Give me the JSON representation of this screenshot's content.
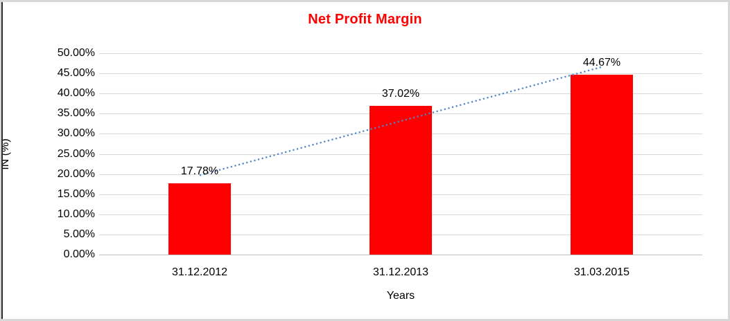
{
  "frame": {
    "background": "#ffffff",
    "border_color": "#d8d8d8",
    "left_accent_color": "#2b2b2b"
  },
  "chart_data": {
    "type": "bar",
    "title": "Net Profit Margin",
    "categories": [
      "31.12.2012",
      "31.12.2013",
      "31.03.2015"
    ],
    "values": [
      17.78,
      37.02,
      44.67
    ],
    "data_labels": [
      "17.78%",
      "37.02%",
      "44.67%"
    ],
    "xlabel": "Years",
    "ylabel": "IN (%)",
    "ylim": [
      0,
      50
    ],
    "ytick_step": 5,
    "ytick_labels": [
      "0.00%",
      "5.00%",
      "10.00%",
      "15.00%",
      "20.00%",
      "25.00%",
      "30.00%",
      "35.00%",
      "40.00%",
      "45.00%",
      "50.00%"
    ],
    "grid": true,
    "legend": "none",
    "colors": {
      "bar": "#ff0000",
      "title": "#ff0000",
      "text": "#000000",
      "gridline": "#d9d9d9",
      "axis_line": "#bfbfbf",
      "trendline": "#4f86c6"
    },
    "trendline": {
      "type": "linear",
      "style": "dotted",
      "start_value": 19.7,
      "end_value": 46.6
    }
  }
}
